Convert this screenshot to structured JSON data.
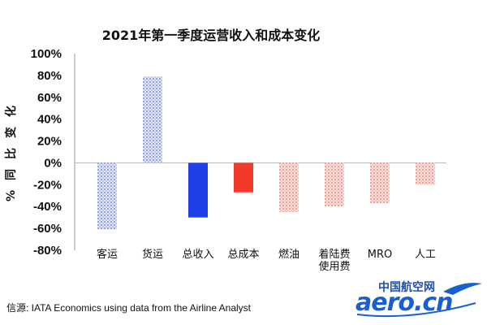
{
  "chart_data": {
    "type": "bar",
    "title": "2021年第一季度运营收入和成本变化",
    "ylabel": "% 同 比 变 化",
    "ylim": [
      -80,
      100
    ],
    "yticks": [
      "100%",
      "80%",
      "60%",
      "40%",
      "20%",
      "0%",
      "-20%",
      "-40%",
      "-60%",
      "-80%"
    ],
    "ytick_values": [
      100,
      80,
      60,
      40,
      20,
      0,
      -20,
      -40,
      -60,
      -80
    ],
    "categories": [
      "客运",
      "货运",
      "总收入",
      "总成本",
      "燃油",
      "着陆费\n使用费",
      "MRO",
      "人工"
    ],
    "values": [
      -61,
      79,
      -50,
      -27,
      -45,
      -40,
      -37,
      -20
    ],
    "bar_styles": [
      "pattern-blue",
      "pattern-blue",
      "solid-blue",
      "solid-red",
      "pattern-red",
      "pattern-red",
      "pattern-red",
      "pattern-red"
    ],
    "colors": {
      "pattern_blue": "#7d8fd6",
      "solid_blue": "#1f3fe8",
      "solid_red": "#f23a2a",
      "pattern_red": "#f08a80"
    },
    "grid": false
  },
  "source": "信源: IATA Economics using data from the Airline Analyst",
  "logo": {
    "top_text": "中国航空网",
    "main_text": "aero.cn"
  }
}
